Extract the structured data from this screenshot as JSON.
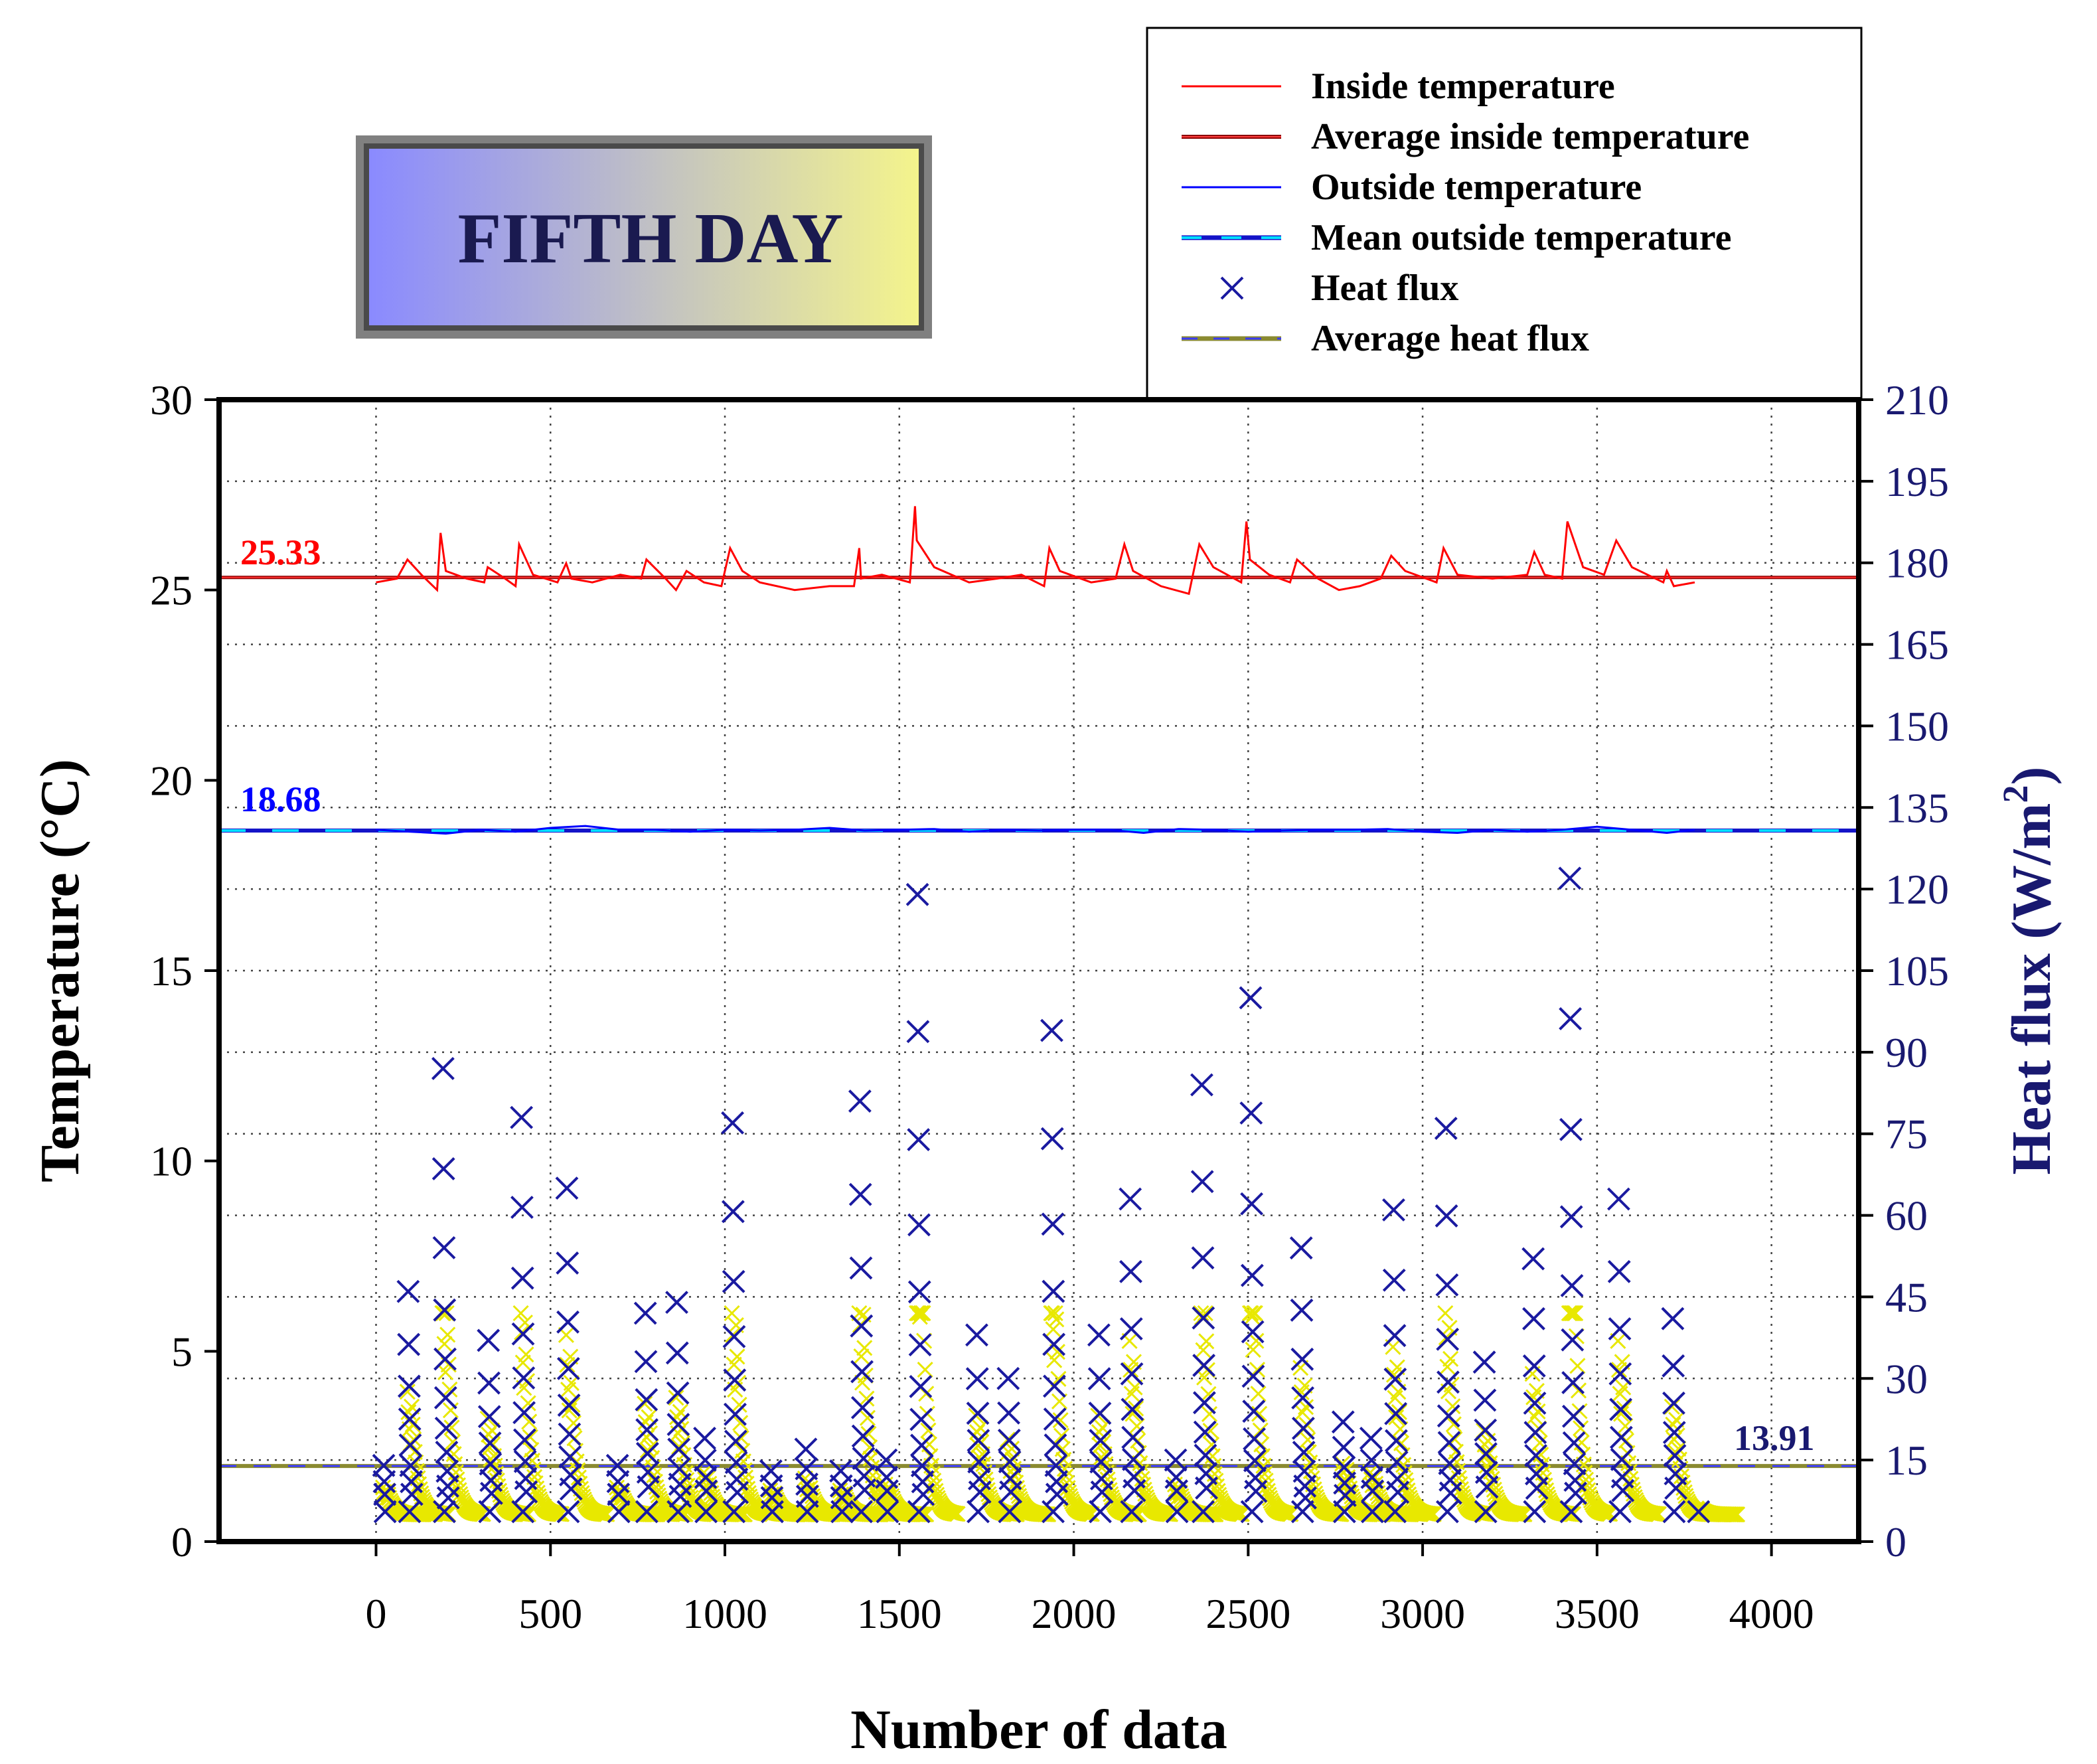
{
  "chart_data": {
    "type": "scatter",
    "title": "FIFTH DAY",
    "xlabel": "Number of data",
    "ylabel_left": "Temperature (°C)",
    "ylabel_right_main": "Heat flux (W/m",
    "ylabel_right_sup": "2",
    "ylabel_right_close": ")",
    "xlim": [
      -450,
      4250
    ],
    "ylim_left": [
      0,
      30
    ],
    "ylim_right": [
      0,
      210
    ],
    "x_ticks": [
      0,
      500,
      1000,
      1500,
      2000,
      2500,
      3000,
      3500,
      4000
    ],
    "y_left_ticks": [
      0,
      5,
      10,
      15,
      20,
      25,
      30
    ],
    "y_right_ticks": [
      0,
      15,
      30,
      45,
      60,
      75,
      90,
      105,
      120,
      135,
      150,
      165,
      180,
      195,
      210
    ],
    "grid": true,
    "legend_position": "top-right",
    "legend": [
      "Inside temperature",
      "Average inside temperature",
      "Outside temperature",
      "Mean outside temperature",
      "Heat flux",
      "Average heat flux"
    ],
    "annotations": {
      "avg_inside": "25.33",
      "mean_outside": "18.68",
      "avg_heat_flux": "13.91"
    },
    "series": [
      {
        "name": "Inside temperature",
        "color": "#ff0000",
        "axis": "left",
        "x": [
          0,
          60,
          90,
          130,
          175,
          185,
          200,
          260,
          310,
          320,
          370,
          400,
          410,
          450,
          520,
          545,
          560,
          620,
          700,
          760,
          775,
          830,
          860,
          890,
          940,
          990,
          1015,
          1050,
          1100,
          1200,
          1300,
          1370,
          1385,
          1390,
          1450,
          1530,
          1545,
          1550,
          1600,
          1700,
          1780,
          1850,
          1915,
          1930,
          1960,
          2050,
          2120,
          2145,
          2170,
          2250,
          2330,
          2360,
          2400,
          2480,
          2495,
          2505,
          2560,
          2620,
          2640,
          2700,
          2760,
          2820,
          2880,
          2910,
          2950,
          3040,
          3060,
          3100,
          3200,
          3300,
          3320,
          3350,
          3400,
          3415,
          3460,
          3520,
          3555,
          3600,
          3690,
          3700,
          3720,
          3780
        ],
        "y": [
          25.2,
          25.3,
          25.8,
          25.4,
          25.0,
          26.5,
          25.5,
          25.3,
          25.2,
          25.6,
          25.3,
          25.1,
          26.2,
          25.4,
          25.2,
          25.7,
          25.3,
          25.2,
          25.4,
          25.3,
          25.8,
          25.3,
          25.0,
          25.5,
          25.2,
          25.1,
          26.1,
          25.5,
          25.2,
          25.0,
          25.1,
          25.1,
          26.1,
          25.3,
          25.4,
          25.2,
          27.2,
          26.3,
          25.6,
          25.2,
          25.3,
          25.4,
          25.1,
          26.1,
          25.5,
          25.2,
          25.3,
          26.2,
          25.5,
          25.1,
          24.9,
          26.2,
          25.6,
          25.2,
          26.8,
          25.8,
          25.4,
          25.2,
          25.8,
          25.3,
          25.0,
          25.1,
          25.3,
          25.9,
          25.5,
          25.2,
          26.1,
          25.4,
          25.3,
          25.4,
          26.0,
          25.4,
          25.3,
          26.8,
          25.6,
          25.4,
          26.3,
          25.6,
          25.2,
          25.5,
          25.1,
          25.2
        ]
      },
      {
        "name": "Outside temperature",
        "color": "#0000ff",
        "axis": "left",
        "x": [
          0,
          100,
          200,
          300,
          400,
          500,
          600,
          700,
          800,
          900,
          1000,
          1100,
          1200,
          1300,
          1400,
          1500,
          1600,
          1700,
          1800,
          1900,
          2000,
          2100,
          2200,
          2300,
          2400,
          2500,
          2600,
          2700,
          2800,
          2900,
          3000,
          3100,
          3200,
          3300,
          3400,
          3500,
          3600,
          3700,
          3780
        ],
        "y": [
          18.7,
          18.65,
          18.6,
          18.7,
          18.65,
          18.75,
          18.8,
          18.7,
          18.7,
          18.65,
          18.7,
          18.68,
          18.7,
          18.75,
          18.68,
          18.7,
          18.72,
          18.65,
          18.7,
          18.68,
          18.7,
          18.7,
          18.62,
          18.72,
          18.7,
          18.65,
          18.68,
          18.7,
          18.7,
          18.72,
          18.65,
          18.62,
          18.7,
          18.65,
          18.7,
          18.78,
          18.7,
          18.62,
          18.7
        ]
      },
      {
        "name": "Heat flux",
        "color": "#1a1aa0",
        "axis": "right",
        "spike_x": [
          20,
          90,
          190,
          320,
          415,
          545,
          690,
          770,
          860,
          940,
          1020,
          1130,
          1230,
          1330,
          1385,
          1460,
          1550,
          1720,
          1810,
          1935,
          2070,
          2160,
          2290,
          2365,
          2505,
          2650,
          2770,
          2850,
          2915,
          3065,
          3175,
          3315,
          3420,
          3560,
          3715,
          3785
        ],
        "spike_peak": [
          14,
          46,
          87,
          37,
          78,
          65,
          14,
          42,
          44,
          19,
          77,
          13,
          17,
          13,
          81,
          15,
          119,
          38,
          30,
          94,
          38,
          63,
          15,
          84,
          100,
          54,
          22,
          19,
          61,
          76,
          33,
          52,
          122,
          63,
          41,
          7
        ]
      }
    ]
  }
}
